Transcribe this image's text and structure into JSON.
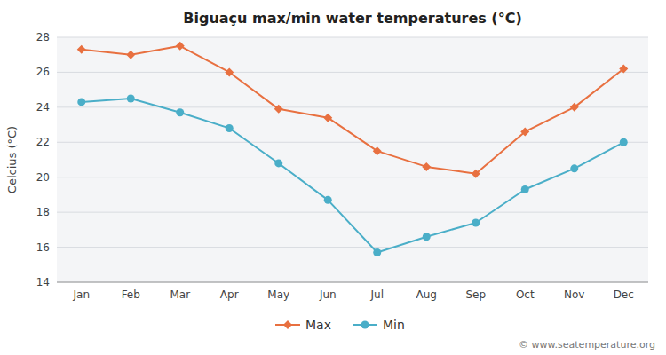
{
  "chart_data": {
    "type": "line",
    "title": "Biguaçu max/min water temperatures (°C)",
    "categories": [
      "Jan",
      "Feb",
      "Mar",
      "Apr",
      "May",
      "Jun",
      "Jul",
      "Aug",
      "Sep",
      "Oct",
      "Nov",
      "Dec"
    ],
    "series": [
      {
        "name": "Max",
        "color": "#e87040",
        "marker": "diamond",
        "values": [
          27.3,
          27.0,
          27.5,
          26.0,
          23.9,
          23.4,
          21.5,
          20.6,
          20.2,
          22.6,
          24.0,
          26.2
        ]
      },
      {
        "name": "Min",
        "color": "#4aaec8",
        "marker": "circle",
        "values": [
          24.3,
          24.5,
          23.7,
          22.8,
          20.8,
          18.7,
          15.7,
          16.6,
          17.4,
          19.3,
          20.5,
          22.0
        ]
      }
    ],
    "y_label": "Celcius (°C)",
    "ylim": [
      14,
      28
    ],
    "yticks": [
      14,
      16,
      18,
      20,
      22,
      24,
      26,
      28
    ],
    "grid": true,
    "legend": "bottom",
    "annotations": [
      "© www.seatemperature.org"
    ]
  }
}
